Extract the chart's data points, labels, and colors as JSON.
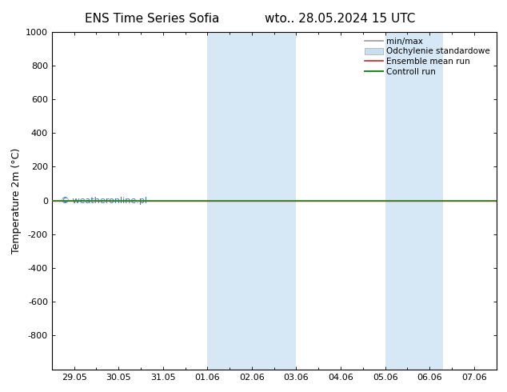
{
  "title_left": "ENS Time Series Sofia",
  "title_right": "wto.. 28.05.2024 15 UTC",
  "ylabel": "Temperature 2m (°C)",
  "ylim": [
    -1000,
    1000
  ],
  "yticks": [
    -800,
    -600,
    -400,
    -200,
    0,
    200,
    400,
    600,
    800,
    1000
  ],
  "xtick_labels": [
    "29.05",
    "30.05",
    "31.05",
    "01.06",
    "02.06",
    "03.06",
    "04.06",
    "05.06",
    "06.06",
    "07.06"
  ],
  "xtick_positions": [
    0,
    1,
    2,
    3,
    4,
    5,
    6,
    7,
    8,
    9
  ],
  "background_color": "#ffffff",
  "plot_bg_color": "#ffffff",
  "shaded_regions": [
    {
      "xstart": 3.0,
      "xend": 5.0,
      "color": "#d6e8f5"
    },
    {
      "xstart": 7.0,
      "xend": 8.3,
      "color": "#d6e8f5"
    }
  ],
  "green_line_y": 0,
  "watermark_text": "© weatheronline.pl",
  "watermark_color": "#3377bb",
  "legend_entries": [
    {
      "label": "min/max",
      "color": "#999999",
      "lw": 1.2,
      "ls": "-",
      "type": "line"
    },
    {
      "label": "Odchylenie standardowe",
      "color": "#c8dff0",
      "lw": 8,
      "ls": "-",
      "type": "patch"
    },
    {
      "label": "Ensemble mean run",
      "color": "#cc2222",
      "lw": 1.2,
      "ls": "-",
      "type": "line"
    },
    {
      "label": "Controll run",
      "color": "#228822",
      "lw": 1.5,
      "ls": "-",
      "type": "line"
    }
  ],
  "title_fontsize": 11,
  "axis_fontsize": 9,
  "tick_fontsize": 8,
  "legend_fontsize": 7.5,
  "border_color": "#000000",
  "xlim": [
    -0.5,
    9.5
  ]
}
